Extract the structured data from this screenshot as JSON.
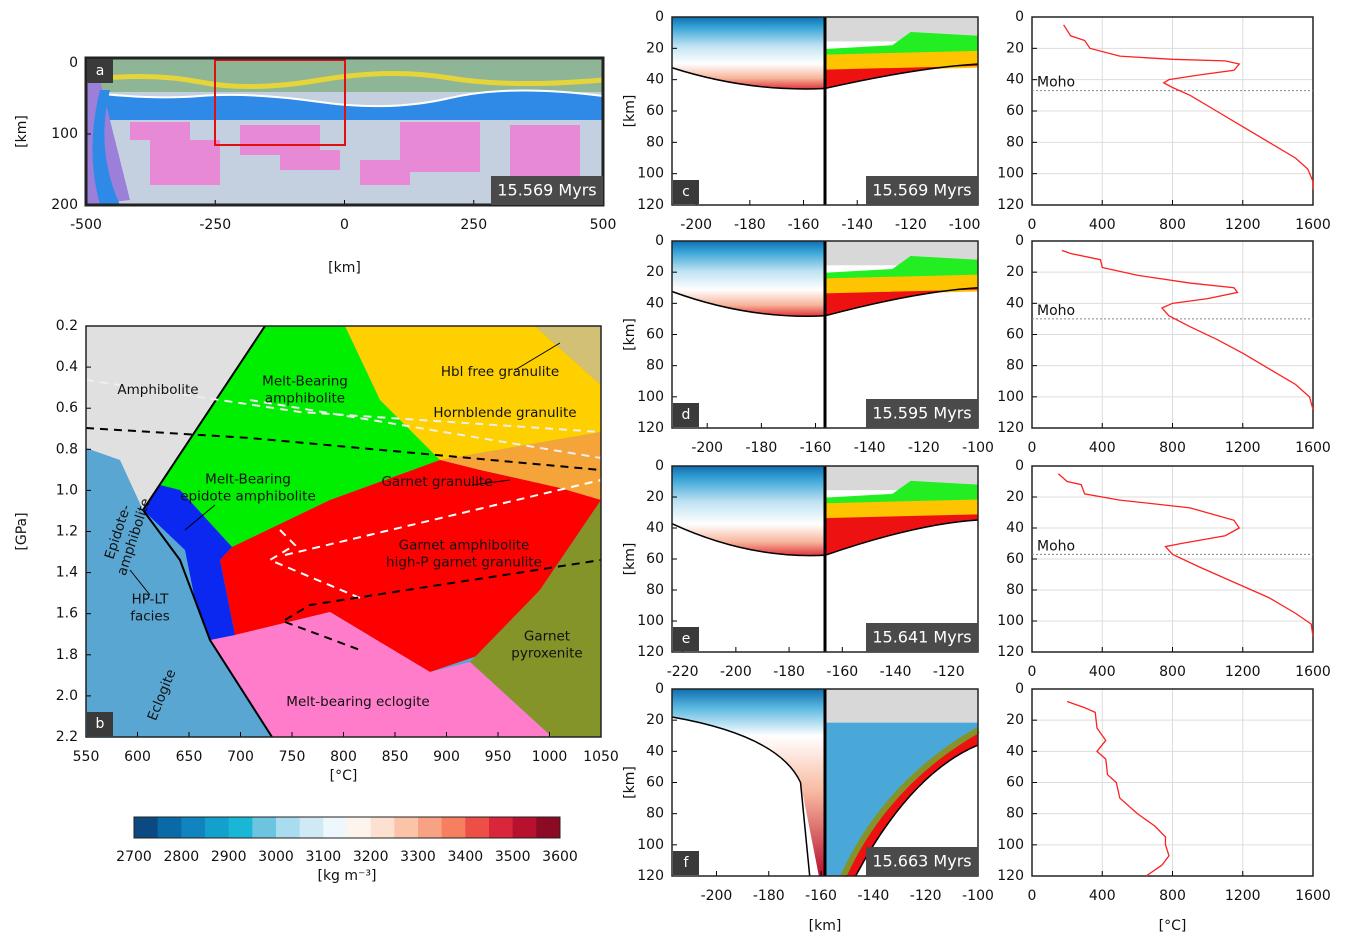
{
  "chart_data": [
    {
      "type": "section",
      "panel": "a",
      "time_label": "15.569 Myrs",
      "xlabel": "[km]",
      "ylabel": "[km]",
      "xlim": [
        -500,
        500
      ],
      "xticks": [
        -500,
        -250,
        0,
        250,
        500
      ],
      "ylim": [
        200,
        -7
      ],
      "yticks": [
        0,
        100,
        200
      ]
    },
    {
      "type": "phase-diagram",
      "panel": "b",
      "xlabel": "[°C]",
      "ylabel": "[GPa]",
      "xlim": [
        550,
        1050
      ],
      "xticks": [
        550,
        600,
        650,
        700,
        750,
        800,
        850,
        900,
        950,
        1000,
        1050
      ],
      "ylim": [
        2.2,
        0.2
      ],
      "yticks": [
        0.2,
        0.4,
        0.6,
        0.8,
        {
          "value": 1,
          "label": "1.0"
        },
        1.2,
        1.4,
        1.6,
        1.8,
        {
          "value": 2,
          "label": "2.0"
        },
        2.2
      ],
      "fields": [
        {
          "lines": [
            "Amphibolite"
          ]
        },
        {
          "lines": [
            "Melt-Bearing",
            "amphibolite"
          ]
        },
        {
          "lines": [
            "Hbl free granulite"
          ]
        },
        {
          "lines": [
            "Hornblende granulite"
          ]
        },
        {
          "lines": [
            "Melt-Bearing",
            "epidote amphibolite"
          ]
        },
        {
          "lines": [
            "Garnet granulite"
          ]
        },
        {
          "lines": [
            "Epidote-",
            "amphibolite"
          ]
        },
        {
          "lines": [
            "Garnet amphibolite",
            "high-P garnet granulite"
          ]
        },
        {
          "lines": [
            "HP-LT",
            "facies"
          ]
        },
        {
          "lines": [
            "Garnet",
            "pyroxenite"
          ]
        },
        {
          "lines": [
            "Eclogite"
          ]
        },
        {
          "lines": [
            "Melt-bearing eclogite"
          ]
        }
      ]
    },
    {
      "type": "colorbar",
      "label": "[kg m⁻³]",
      "clim": [
        2700,
        3600
      ],
      "ticks": [
        2700,
        2800,
        2900,
        3000,
        3100,
        3200,
        3300,
        3400,
        3500,
        3600
      ],
      "colors": [
        "#0b4a80",
        "#0a6aa8",
        "#1184c0",
        "#14a0cc",
        "#1ab6d6",
        "#6cc4e0",
        "#a9dcee",
        "#cfeaf5",
        "#eef7fb",
        "#fdf4ee",
        "#fde0cf",
        "#fbc4a8",
        "#f9a283",
        "#f57f5f",
        "#ec4f46",
        "#d9263a",
        "#b8102f",
        "#8c0a23"
      ]
    },
    {
      "type": "section",
      "panel": "c",
      "time_label": "15.569 Myrs",
      "ylabel": "[km]",
      "xlim": [
        -209,
        -95
      ],
      "xticks": [
        -200,
        -180,
        -160,
        -140,
        -120,
        -100
      ],
      "ylim": [
        120,
        0
      ],
      "yticks": [
        0,
        20,
        40,
        60,
        80,
        100,
        120
      ]
    },
    {
      "type": "section",
      "panel": "d",
      "time_label": "15.595 Myrs",
      "ylabel": "[km]",
      "xlim": [
        -213,
        -100
      ],
      "xticks": [
        -200,
        -180,
        -160,
        -140,
        -120,
        -100
      ],
      "ylim": [
        120,
        0
      ],
      "yticks": [
        0,
        20,
        40,
        60,
        80,
        100,
        120
      ]
    },
    {
      "type": "section",
      "panel": "e",
      "time_label": "15.641 Myrs",
      "ylabel": "[km]",
      "xlim": [
        -224,
        -109
      ],
      "xticks": [
        -220,
        -200,
        -180,
        -160,
        -140,
        -120
      ],
      "ylim": [
        120,
        0
      ],
      "yticks": [
        0,
        20,
        40,
        60,
        80,
        100,
        120
      ]
    },
    {
      "type": "section",
      "panel": "f",
      "time_label": "15.663 Myrs",
      "ylabel": "[km]",
      "xlabel": "[km]",
      "xlim": [
        -217,
        -100
      ],
      "xticks": [
        -200,
        -180,
        -160,
        -140,
        -120,
        -100
      ],
      "ylim": [
        120,
        0
      ],
      "yticks": [
        0,
        20,
        40,
        60,
        80,
        100,
        120
      ]
    },
    {
      "type": "line",
      "color": "#ff2020",
      "grid": true,
      "xlim": [
        0,
        1600
      ],
      "xticks": [
        0,
        400,
        800,
        1200,
        1600
      ],
      "ylim": [
        120,
        0
      ],
      "yticks": [
        0,
        20,
        40,
        60,
        80,
        100,
        120
      ],
      "moho_label": "Moho",
      "moho_depth": 47,
      "values": [
        180,
        220,
        300,
        330,
        500,
        800,
        1100,
        1180,
        1150,
        950,
        780,
        750,
        800,
        900,
        1050,
        1200,
        1350,
        1500,
        1570,
        1600,
        1600
      ],
      "depths": [
        5,
        12,
        15,
        20,
        25,
        27,
        28,
        30,
        34,
        37,
        40,
        42,
        45,
        50,
        60,
        70,
        80,
        90,
        97,
        105,
        110
      ]
    },
    {
      "type": "line",
      "color": "#ff2020",
      "grid": true,
      "xlim": [
        0,
        1600
      ],
      "xticks": [
        0,
        400,
        800,
        1200,
        1600
      ],
      "ylim": [
        120,
        0
      ],
      "yticks": [
        0,
        20,
        40,
        60,
        80,
        100,
        120
      ],
      "moho_label": "Moho",
      "moho_depth": 50,
      "values": [
        170,
        220,
        390,
        400,
        600,
        900,
        1150,
        1170,
        1000,
        800,
        740,
        780,
        900,
        1050,
        1200,
        1350,
        1500,
        1580,
        1600
      ],
      "depths": [
        6,
        8,
        12,
        17,
        22,
        27,
        30,
        33,
        37,
        40,
        43,
        48,
        55,
        63,
        72,
        82,
        92,
        100,
        108
      ]
    },
    {
      "type": "line",
      "color": "#ff2020",
      "grid": true,
      "xlim": [
        0,
        1600
      ],
      "xticks": [
        0,
        400,
        800,
        1200,
        1600
      ],
      "ylim": [
        120,
        0
      ],
      "yticks": [
        0,
        20,
        40,
        60,
        80,
        100,
        120
      ],
      "moho_label": "Moho",
      "moho_depth": 57,
      "values": [
        150,
        200,
        280,
        300,
        500,
        900,
        1150,
        1180,
        1100,
        850,
        760,
        800,
        950,
        1150,
        1350,
        1500,
        1590,
        1600
      ],
      "depths": [
        5,
        10,
        12,
        18,
        22,
        27,
        35,
        40,
        45,
        50,
        52,
        57,
        65,
        75,
        85,
        95,
        102,
        110
      ]
    },
    {
      "type": "line",
      "color": "#ff2020",
      "grid": true,
      "xlabel": "[°C]",
      "xlim": [
        0,
        1600
      ],
      "xticks": [
        0,
        400,
        800,
        1200,
        1600
      ],
      "ylim": [
        120,
        0
      ],
      "yticks": [
        0,
        20,
        40,
        60,
        80,
        100,
        120
      ],
      "values": [
        200,
        300,
        360,
        370,
        420,
        370,
        420,
        430,
        480,
        500,
        600,
        700,
        760,
        760,
        780,
        740,
        650
      ],
      "depths": [
        8,
        12,
        15,
        25,
        33,
        40,
        45,
        55,
        60,
        70,
        80,
        88,
        95,
        100,
        107,
        113,
        120
      ]
    }
  ]
}
